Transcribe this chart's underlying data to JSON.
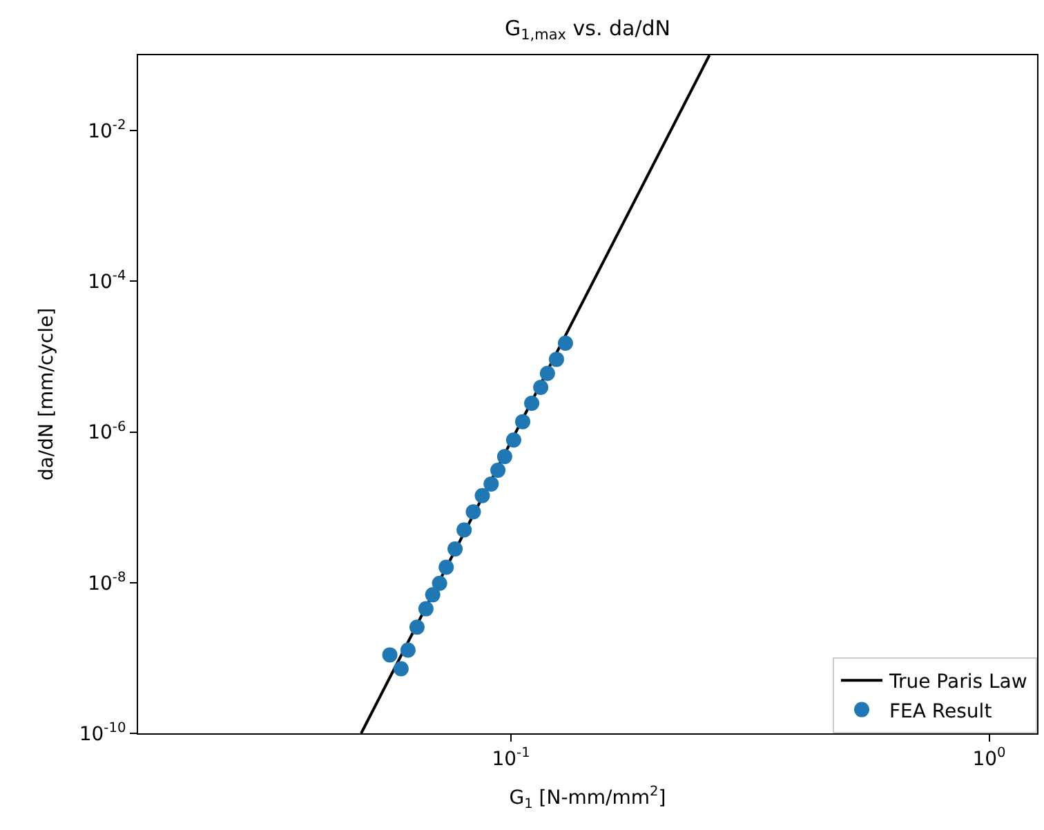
{
  "chart_data": {
    "type": "scatter",
    "title": "G$_{1,max}$ vs. da/dN",
    "xlabel": "G$_{1}$ [N-mm/mm$^{2}$]",
    "ylabel": "da/dN [mm/cycle]",
    "log": "xy",
    "xlim": [
      0.0166,
      1.26
    ],
    "ylim": [
      1e-10,
      0.1
    ],
    "xticks": [
      {
        "value": 0.1,
        "label": "10$^{-1}$"
      },
      {
        "value": 1,
        "label": "10$^{0}$"
      }
    ],
    "yticks": [
      {
        "value": 1e-10,
        "label": "10$^{-10}$"
      },
      {
        "value": 1e-08,
        "label": "10$^{-8}$"
      },
      {
        "value": 1e-06,
        "label": "10$^{-6}$"
      },
      {
        "value": 0.0001,
        "label": "10$^{-4}$"
      },
      {
        "value": 0.01,
        "label": "10$^{-2}$"
      }
    ],
    "legend": "bottom right",
    "series": [
      {
        "name": "True Paris Law",
        "type": "line",
        "color": "#000000",
        "line_style": "solid",
        "marker": "none",
        "x": [
          0.0486,
          0.26
        ],
        "values": [
          1e-10,
          0.1
        ]
      },
      {
        "name": "FEA Result",
        "color": "#1f77b4",
        "marker": "circle",
        "x": [
          0.0558,
          0.0589,
          0.0609,
          0.0636,
          0.0664,
          0.0686,
          0.0709,
          0.0732,
          0.0764,
          0.0798,
          0.0834,
          0.0871,
          0.0909,
          0.0939,
          0.097,
          0.1013,
          0.1058,
          0.1105,
          0.1154,
          0.1192,
          0.1245,
          0.13
        ],
        "values": [
          1.1e-09,
          7.2e-10,
          1.27e-09,
          2.57e-09,
          4.5e-09,
          6.9e-09,
          9.8e-09,
          1.6e-08,
          2.8e-08,
          5e-08,
          8.7e-08,
          1.43e-07,
          2.04e-07,
          3.1e-07,
          4.7e-07,
          7.8e-07,
          1.37e-06,
          2.4e-06,
          3.9e-06,
          6e-06,
          9.2e-06,
          1.51e-05
        ]
      }
    ]
  }
}
